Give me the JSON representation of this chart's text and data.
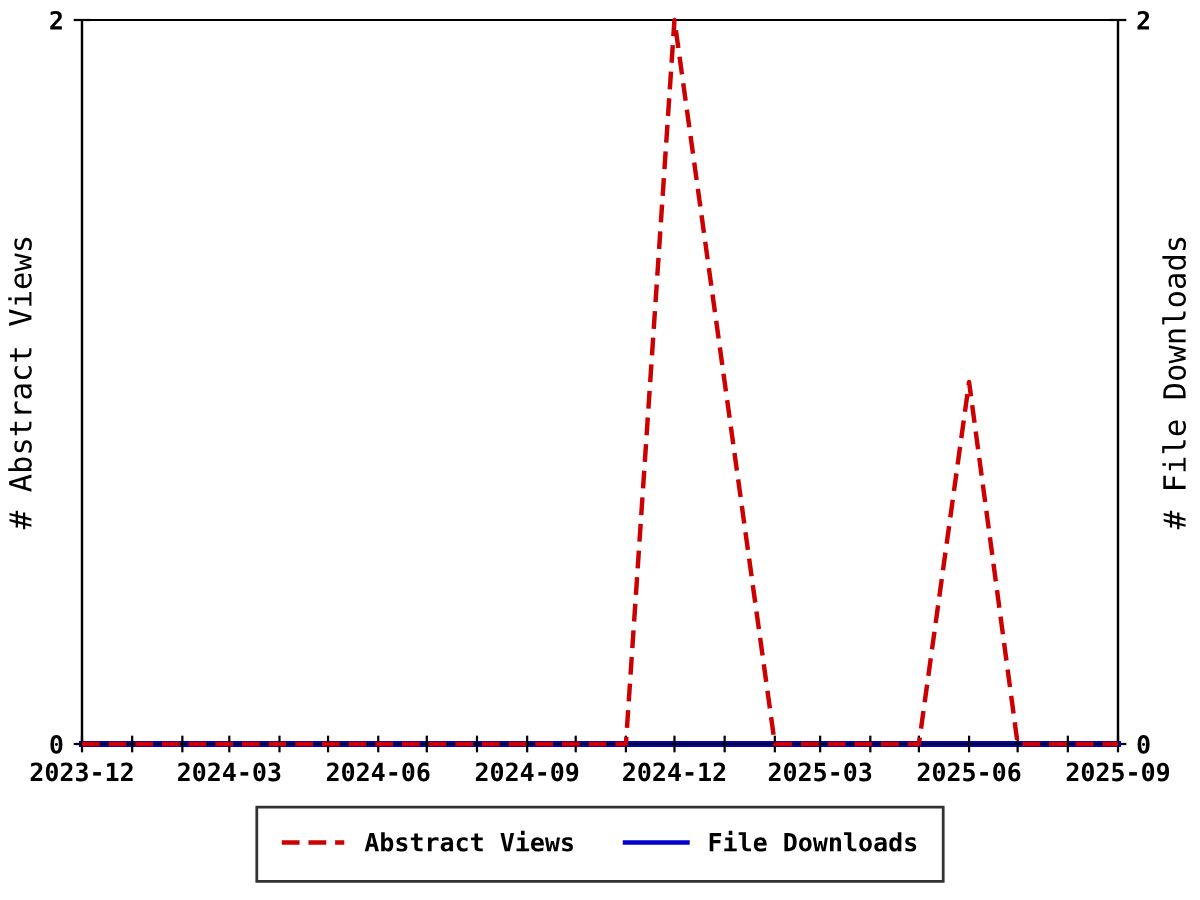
{
  "chart_data": {
    "type": "line",
    "x": [
      "2023-12",
      "2024-01",
      "2024-02",
      "2024-03",
      "2024-04",
      "2024-05",
      "2024-06",
      "2024-07",
      "2024-08",
      "2024-09",
      "2024-10",
      "2024-11",
      "2024-12",
      "2025-01",
      "2025-02",
      "2025-03",
      "2025-04",
      "2025-05",
      "2025-06",
      "2025-07",
      "2025-08",
      "2025-09"
    ],
    "series": [
      {
        "name": "Abstract Views",
        "color": "#cc0000",
        "line_style": "dashed",
        "values": [
          0,
          0,
          0,
          0,
          0,
          0,
          0,
          0,
          0,
          0,
          0,
          0,
          2,
          1,
          0,
          0,
          0,
          0,
          1,
          0,
          0,
          0
        ]
      },
      {
        "name": "File Downloads",
        "color": "#0000cc",
        "line_style": "solid",
        "axis": "y2",
        "values": [
          0,
          0,
          0,
          0,
          0,
          0,
          0,
          0,
          0,
          0,
          0,
          0,
          0,
          0,
          0,
          0,
          0,
          0,
          0,
          0,
          0,
          0
        ]
      }
    ],
    "ylabel": "# Abstract Views",
    "y2label": "# File Downloads",
    "xlim": [
      "2023-12",
      "2025-09"
    ],
    "xticks": [
      {
        "value": "2023-12",
        "label": "2023-12"
      },
      {
        "value": "2024-01",
        "label": null
      },
      {
        "value": "2024-02",
        "label": null
      },
      {
        "value": "2024-03",
        "label": "2024-03"
      },
      {
        "value": "2024-04",
        "label": null
      },
      {
        "value": "2024-05",
        "label": null
      },
      {
        "value": "2024-06",
        "label": "2024-06"
      },
      {
        "value": "2024-07",
        "label": null
      },
      {
        "value": "2024-08",
        "label": null
      },
      {
        "value": "2024-09",
        "label": "2024-09"
      },
      {
        "value": "2024-10",
        "label": null
      },
      {
        "value": "2024-11",
        "label": null
      },
      {
        "value": "2024-12",
        "label": "2024-12"
      },
      {
        "value": "2025-01",
        "label": null
      },
      {
        "value": "2025-02",
        "label": null
      },
      {
        "value": "2025-03",
        "label": "2025-03"
      },
      {
        "value": "2025-04",
        "label": null
      },
      {
        "value": "2025-05",
        "label": null
      },
      {
        "value": "2025-06",
        "label": "2025-06"
      },
      {
        "value": "2025-07",
        "label": null
      },
      {
        "value": "2025-08",
        "label": null
      },
      {
        "value": "2025-09",
        "label": "2025-09"
      }
    ],
    "ylim": [
      0,
      2
    ],
    "yticks": [
      0,
      2
    ],
    "y2lim": [
      0,
      2
    ],
    "y2ticks": [
      0,
      2
    ],
    "grid": false,
    "legend": "bottom",
    "marker": "none"
  }
}
